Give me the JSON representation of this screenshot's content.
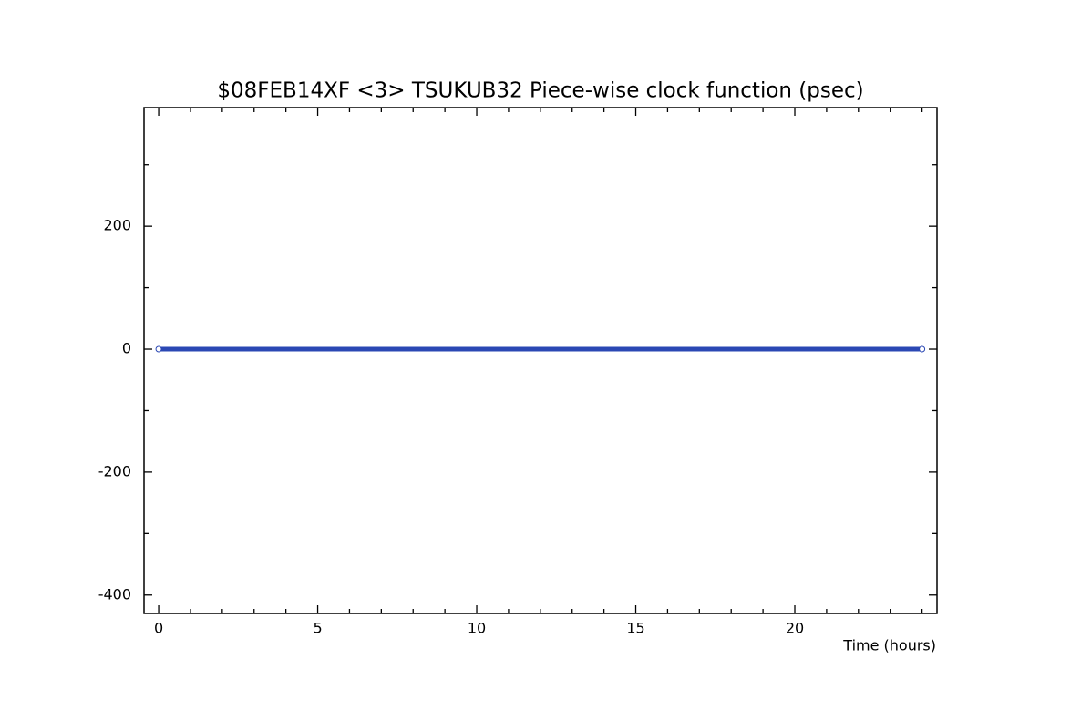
{
  "chart_data": {
    "type": "line",
    "title": "$08FEB14XF <3>  TSUKUB32  Piece-wise clock function (psec)",
    "x_label": "Time (hours)",
    "x": [
      0,
      24
    ],
    "series": [
      {
        "color": "#2b48b4",
        "values": [
          0,
          0
        ]
      }
    ],
    "xlim": [
      -0.46,
      24.47
    ],
    "ylim": [
      -430,
      393
    ],
    "xticks": [
      0,
      5,
      10,
      15,
      20
    ],
    "yticks": [
      -400,
      -200,
      0,
      200
    ],
    "xminorticks": [
      1,
      2,
      3,
      4,
      6,
      7,
      8,
      9,
      11,
      12,
      13,
      14,
      16,
      17,
      18,
      19,
      21,
      22,
      23,
      24
    ],
    "yminorticks": [
      -300,
      -100,
      100,
      300
    ],
    "grid": false
  }
}
